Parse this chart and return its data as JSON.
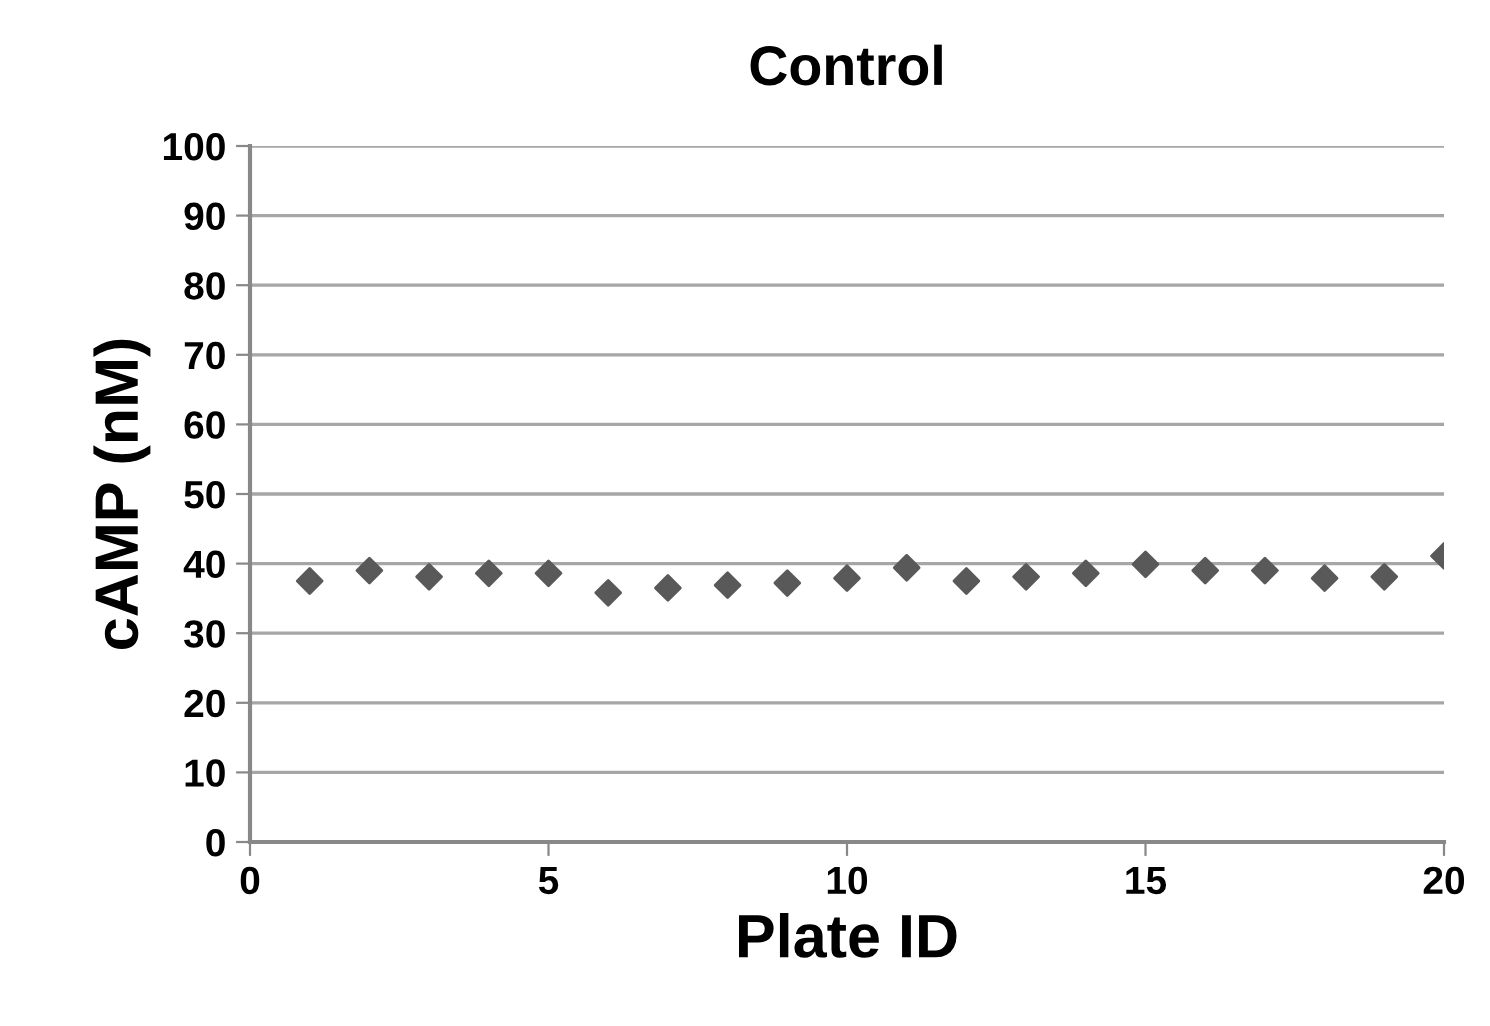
{
  "chart_data": {
    "type": "scatter",
    "title": "Control",
    "xlabel": "Plate ID",
    "ylabel": "cAMP (nM)",
    "x": [
      1,
      2,
      3,
      4,
      5,
      6,
      7,
      8,
      9,
      10,
      11,
      12,
      13,
      14,
      15,
      16,
      17,
      18,
      19,
      20
    ],
    "series": [
      {
        "color": "#595959",
        "values": [
          37.5,
          39.0,
          38.1,
          38.6,
          38.6,
          35.8,
          36.5,
          36.9,
          37.2,
          37.9,
          39.4,
          37.5,
          38.1,
          38.6,
          39.9,
          39.0,
          39.0,
          37.9,
          38.1,
          41.1
        ]
      }
    ],
    "xlim": [
      0,
      20
    ],
    "xticks": [
      0,
      5,
      10,
      15,
      20
    ],
    "ylim": [
      0,
      100
    ],
    "yticks": [
      0,
      10,
      20,
      30,
      40,
      50,
      60,
      70,
      80,
      90,
      100
    ],
    "grid": "y",
    "marker": "diamond"
  }
}
